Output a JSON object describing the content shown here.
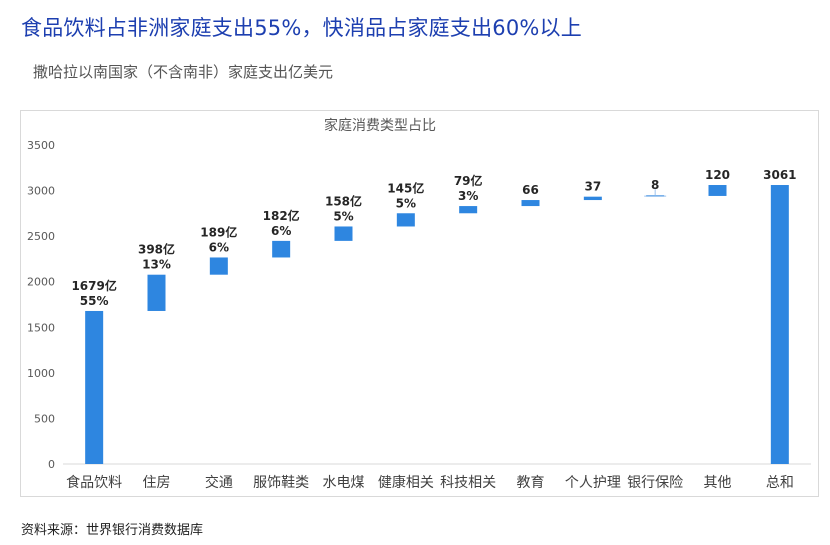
{
  "header": {
    "title": "食品饮料占非洲家庭支出55%，快消品占家庭支出60%以上",
    "subtitle": "撒哈拉以南国家（不含南非）家庭支出亿美元"
  },
  "footer": {
    "source": "资料来源：世界银行消费数据库"
  },
  "chart_data": {
    "type": "bar",
    "subtype": "waterfall",
    "title": "家庭消费类型占比",
    "xlabel": "",
    "ylabel": "",
    "ylim": [
      0,
      3500
    ],
    "yticks": [
      0,
      500,
      1000,
      1500,
      2000,
      2500,
      3000,
      3500
    ],
    "grid": false,
    "legend": "none",
    "bar_color": "#2e86e0",
    "categories": [
      "食品饮料",
      "住房",
      "交通",
      "服饰鞋类",
      "水电煤",
      "健康相关",
      "科技相关",
      "教育",
      "个人护理",
      "银行保险",
      "其他",
      "总和"
    ],
    "values": [
      1679,
      398,
      189,
      182,
      158,
      145,
      79,
      66,
      37,
      8,
      120,
      3061
    ],
    "is_total": [
      false,
      false,
      false,
      false,
      false,
      false,
      false,
      false,
      false,
      false,
      false,
      true
    ],
    "data_labels": [
      [
        "1679亿",
        "55%"
      ],
      [
        "398亿",
        "13%"
      ],
      [
        "189亿",
        "6%"
      ],
      [
        "182亿",
        "6%"
      ],
      [
        "158亿",
        "5%"
      ],
      [
        "145亿",
        "5%"
      ],
      [
        "79亿",
        "3%"
      ],
      [
        "66"
      ],
      [
        "37"
      ],
      [
        "8"
      ],
      [
        "120"
      ],
      [
        "3061"
      ]
    ]
  }
}
